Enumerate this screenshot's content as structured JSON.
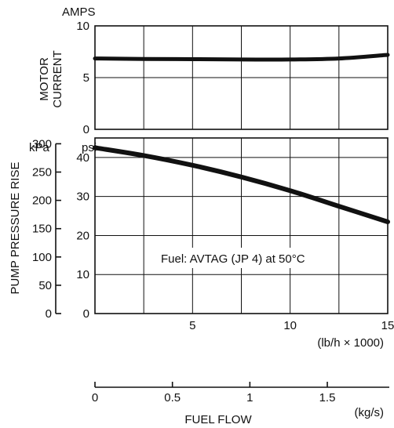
{
  "chart_data": [
    {
      "type": "line",
      "ylabel_lines": [
        "MOTOR",
        "CURRENT"
      ],
      "y_unit": "AMPS",
      "ylim": [
        0,
        10
      ],
      "yticks": [
        0,
        5,
        10
      ],
      "xlim": [
        0,
        15
      ],
      "grid": true,
      "x": [
        0,
        2.5,
        5,
        7.5,
        10,
        12.5,
        15
      ],
      "series": [
        {
          "values": [
            6.85,
            6.8,
            6.78,
            6.75,
            6.75,
            6.85,
            7.2
          ]
        }
      ]
    },
    {
      "type": "line",
      "ylabel": "PUMP  PRESSURE RISE",
      "y_unit": "psi",
      "y_unit_secondary": "kPa",
      "ylim": [
        0,
        45
      ],
      "yticks": [
        0,
        10,
        20,
        30,
        40
      ],
      "kpa_ticks": [
        0,
        50,
        100,
        150,
        200,
        250,
        300
      ],
      "xlim": [
        0,
        15
      ],
      "xticks": [
        5,
        10,
        15
      ],
      "x_unit": "(lb/h × 1000)",
      "grid": true,
      "annotation": "Fuel: AVTAG (JP 4) at 50°C",
      "x": [
        0,
        2.5,
        5,
        7.5,
        10,
        12.5,
        15
      ],
      "series": [
        {
          "values": [
            42.5,
            40.5,
            38,
            35,
            31.5,
            27.5,
            23.5
          ]
        }
      ]
    },
    {
      "type": "axis",
      "xlabel": "FUEL FLOW",
      "x_unit": "(kg/s)",
      "xticks": [
        0,
        0.5,
        1,
        1.5
      ],
      "xtick_labels": [
        "0",
        "0.5",
        "1",
        "1.5"
      ]
    }
  ]
}
